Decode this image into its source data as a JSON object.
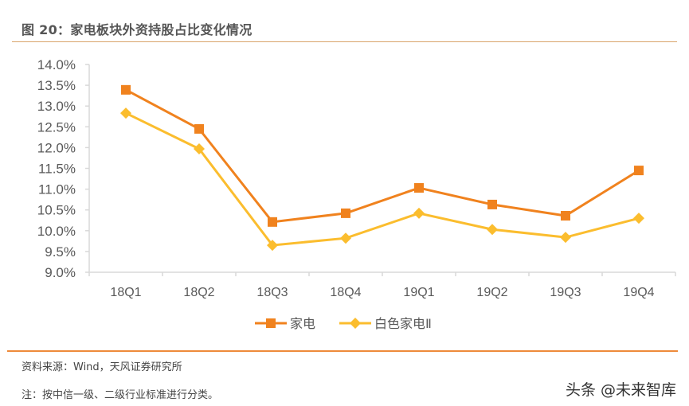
{
  "header": {
    "title": "图 20：家电板块外资持股占比变化情况"
  },
  "chart_data": {
    "type": "line",
    "title": "图 20：家电板块外资持股占比变化情况",
    "xlabel": "",
    "ylabel": "",
    "categories": [
      "18Q1",
      "18Q2",
      "18Q3",
      "18Q4",
      "19Q1",
      "19Q2",
      "19Q3",
      "19Q4"
    ],
    "series": [
      {
        "name": "家电",
        "color": "#f0821e",
        "marker": "square",
        "values": [
          13.39,
          12.45,
          10.21,
          10.42,
          11.03,
          10.63,
          10.36,
          11.45
        ]
      },
      {
        "name": "白色家电Ⅱ",
        "color": "#fbbd2e",
        "marker": "diamond",
        "values": [
          12.83,
          11.97,
          9.65,
          9.82,
          10.42,
          10.03,
          9.84,
          10.3
        ]
      }
    ],
    "ylim": [
      9.0,
      14.0
    ],
    "yticks": [
      "14.0%",
      "13.5%",
      "13.0%",
      "12.5%",
      "12.0%",
      "11.5%",
      "11.0%",
      "10.5%",
      "10.0%",
      "9.5%",
      "9.0%"
    ],
    "grid": false,
    "legend_position": "bottom"
  },
  "footer": {
    "source": "资料来源：Wind，天风证券研究所",
    "note": "注：按中信一级、二级行业标准进行分类。",
    "watermark": "头条 @未来智库"
  }
}
